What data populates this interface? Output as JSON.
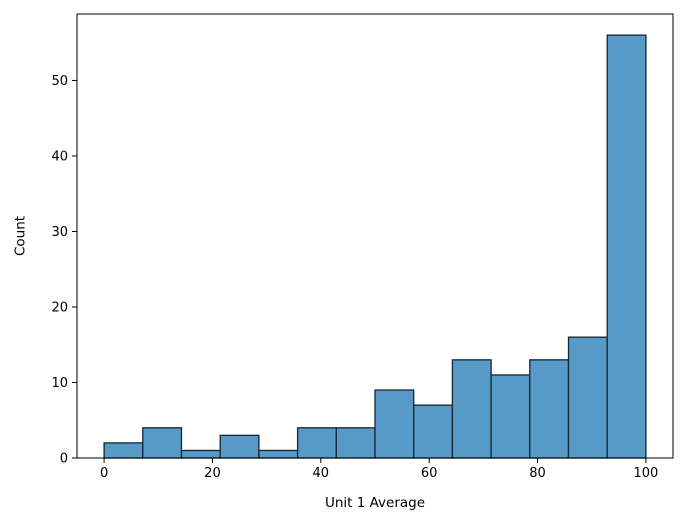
{
  "chart_data": {
    "type": "bar",
    "subtype": "histogram",
    "title": "",
    "xlabel": "Unit 1 Average",
    "ylabel": "Count",
    "bin_edges": [
      0,
      7.143,
      14.286,
      21.429,
      28.571,
      35.714,
      42.857,
      50,
      57.143,
      64.286,
      71.429,
      78.571,
      85.714,
      92.857,
      100
    ],
    "values": [
      2,
      4,
      1,
      3,
      1,
      4,
      4,
      9,
      7,
      13,
      11,
      13,
      16,
      56
    ],
    "xticks": [
      0,
      20,
      40,
      60,
      80,
      100
    ],
    "yticks": [
      0,
      10,
      20,
      30,
      40,
      50
    ],
    "xlim": [
      -5,
      105
    ],
    "ylim": [
      0,
      58.8
    ],
    "grid": false,
    "legend": null,
    "colors": {
      "bar_fill": "#5799c7",
      "bar_edge": "#162632",
      "axis": "#000000",
      "text": "#000000",
      "background": "#ffffff"
    }
  }
}
